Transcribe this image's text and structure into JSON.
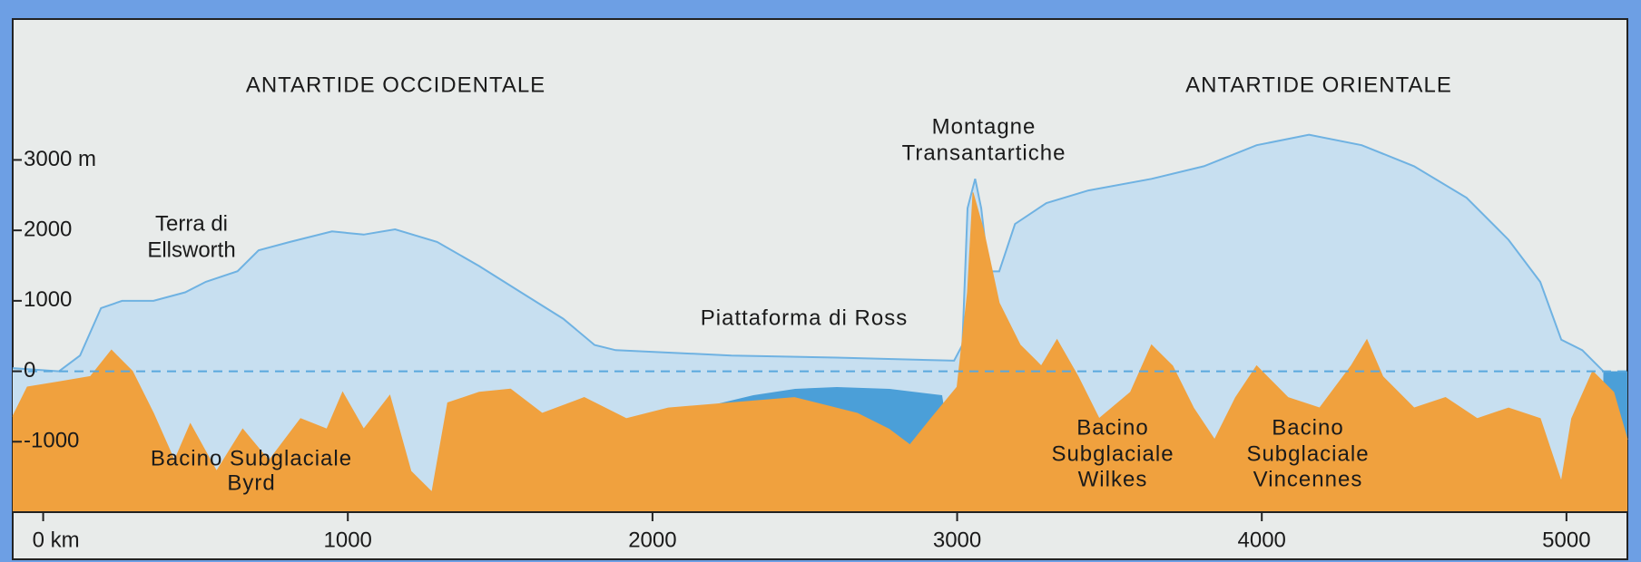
{
  "chart_data": {
    "type": "area",
    "annotations": [
      {
        "lines": [
          "ANTARTIDE OCCIDENTALE"
        ]
      },
      {
        "lines": [
          "ANTARTIDE ORIENTALE"
        ]
      },
      {
        "lines": [
          "Montagne",
          "Transantartiche"
        ]
      },
      {
        "lines": [
          "Terra di",
          "Ellsworth"
        ]
      },
      {
        "lines": [
          "Piattaforma di Ross"
        ]
      },
      {
        "lines": [
          "Bacino Subglaciale",
          "Byrd"
        ]
      },
      {
        "lines": [
          "Bacino",
          "Subglaciale",
          "Wilkes"
        ]
      },
      {
        "lines": [
          "Bacino",
          "Subglaciale",
          "Vincennes"
        ]
      }
    ],
    "xlim": [
      -100,
      5200
    ],
    "ylim": [
      -2000,
      5000
    ],
    "xticks": [
      {
        "value": 0,
        "label": "0 km"
      },
      1000,
      2000,
      3000,
      4000,
      5000
    ],
    "yticks": [
      {
        "value": 3000,
        "label": "3000 m"
      },
      2000,
      1000,
      0,
      -1000
    ],
    "series": [
      {
        "color": "#c7dff0",
        "x": [
          -100,
          52,
          121,
          190,
          259,
          362,
          466,
          534,
          638,
          707,
          810,
          948,
          1052,
          1155,
          1293,
          1431,
          1569,
          1707,
          1810,
          1879,
          2259,
          2603,
          2990,
          3017,
          3034,
          3059,
          3079,
          3103,
          3138,
          3190,
          3293,
          3431,
          3638,
          3810,
          3983,
          4155,
          4328,
          4500,
          4672,
          4810,
          4914,
          4983,
          5052,
          5121
        ],
        "values": [
          45,
          0,
          224,
          896,
          1000,
          1000,
          1120,
          1270,
          1420,
          1716,
          1836,
          1985,
          1940,
          2015,
          1836,
          1493,
          1119,
          746,
          373,
          300,
          224,
          194,
          150,
          373,
          2313,
          2731,
          2313,
          1418,
          1418,
          2090,
          2388,
          2567,
          2731,
          2910,
          3209,
          3358,
          3209,
          2910,
          2463,
          1866,
          1269,
          448,
          300,
          0
        ]
      },
      {
        "color": "#f0a13e",
        "x": [
          -100,
          -52,
          52,
          155,
          224,
          293,
          362,
          431,
          483,
          569,
          655,
          741,
          845,
          931,
          983,
          1052,
          1138,
          1207,
          1276,
          1328,
          1431,
          1534,
          1638,
          1776,
          1914,
          2052,
          2259,
          2466,
          2672,
          2776,
          2845,
          2914,
          3000,
          3034,
          3052,
          3086,
          3138,
          3207,
          3276,
          3328,
          3397,
          3466,
          3569,
          3638,
          3707,
          3776,
          3845,
          3914,
          3983,
          4086,
          4190,
          4293,
          4345,
          4397,
          4500,
          4603,
          4707,
          4810,
          4914,
          4983,
          5017,
          5086,
          5155,
          5200
        ],
        "values": [
          -642,
          -224,
          -150,
          -75,
          300,
          0,
          -597,
          -1269,
          -746,
          -1418,
          -821,
          -1269,
          -672,
          -821,
          -299,
          -821,
          -343,
          -1418,
          -1716,
          -448,
          -299,
          -254,
          -597,
          -373,
          -672,
          -522,
          -448,
          -373,
          -597,
          -821,
          -1045,
          -672,
          -224,
          1119,
          2537,
          2015,
          970,
          373,
          75,
          448,
          -75,
          -672,
          -299,
          373,
          75,
          -522,
          -970,
          -373,
          75,
          -373,
          -522,
          75,
          448,
          -75,
          -522,
          -373,
          -672,
          -522,
          -672,
          -1567,
          -672,
          0,
          -299,
          -970
        ]
      }
    ]
  }
}
